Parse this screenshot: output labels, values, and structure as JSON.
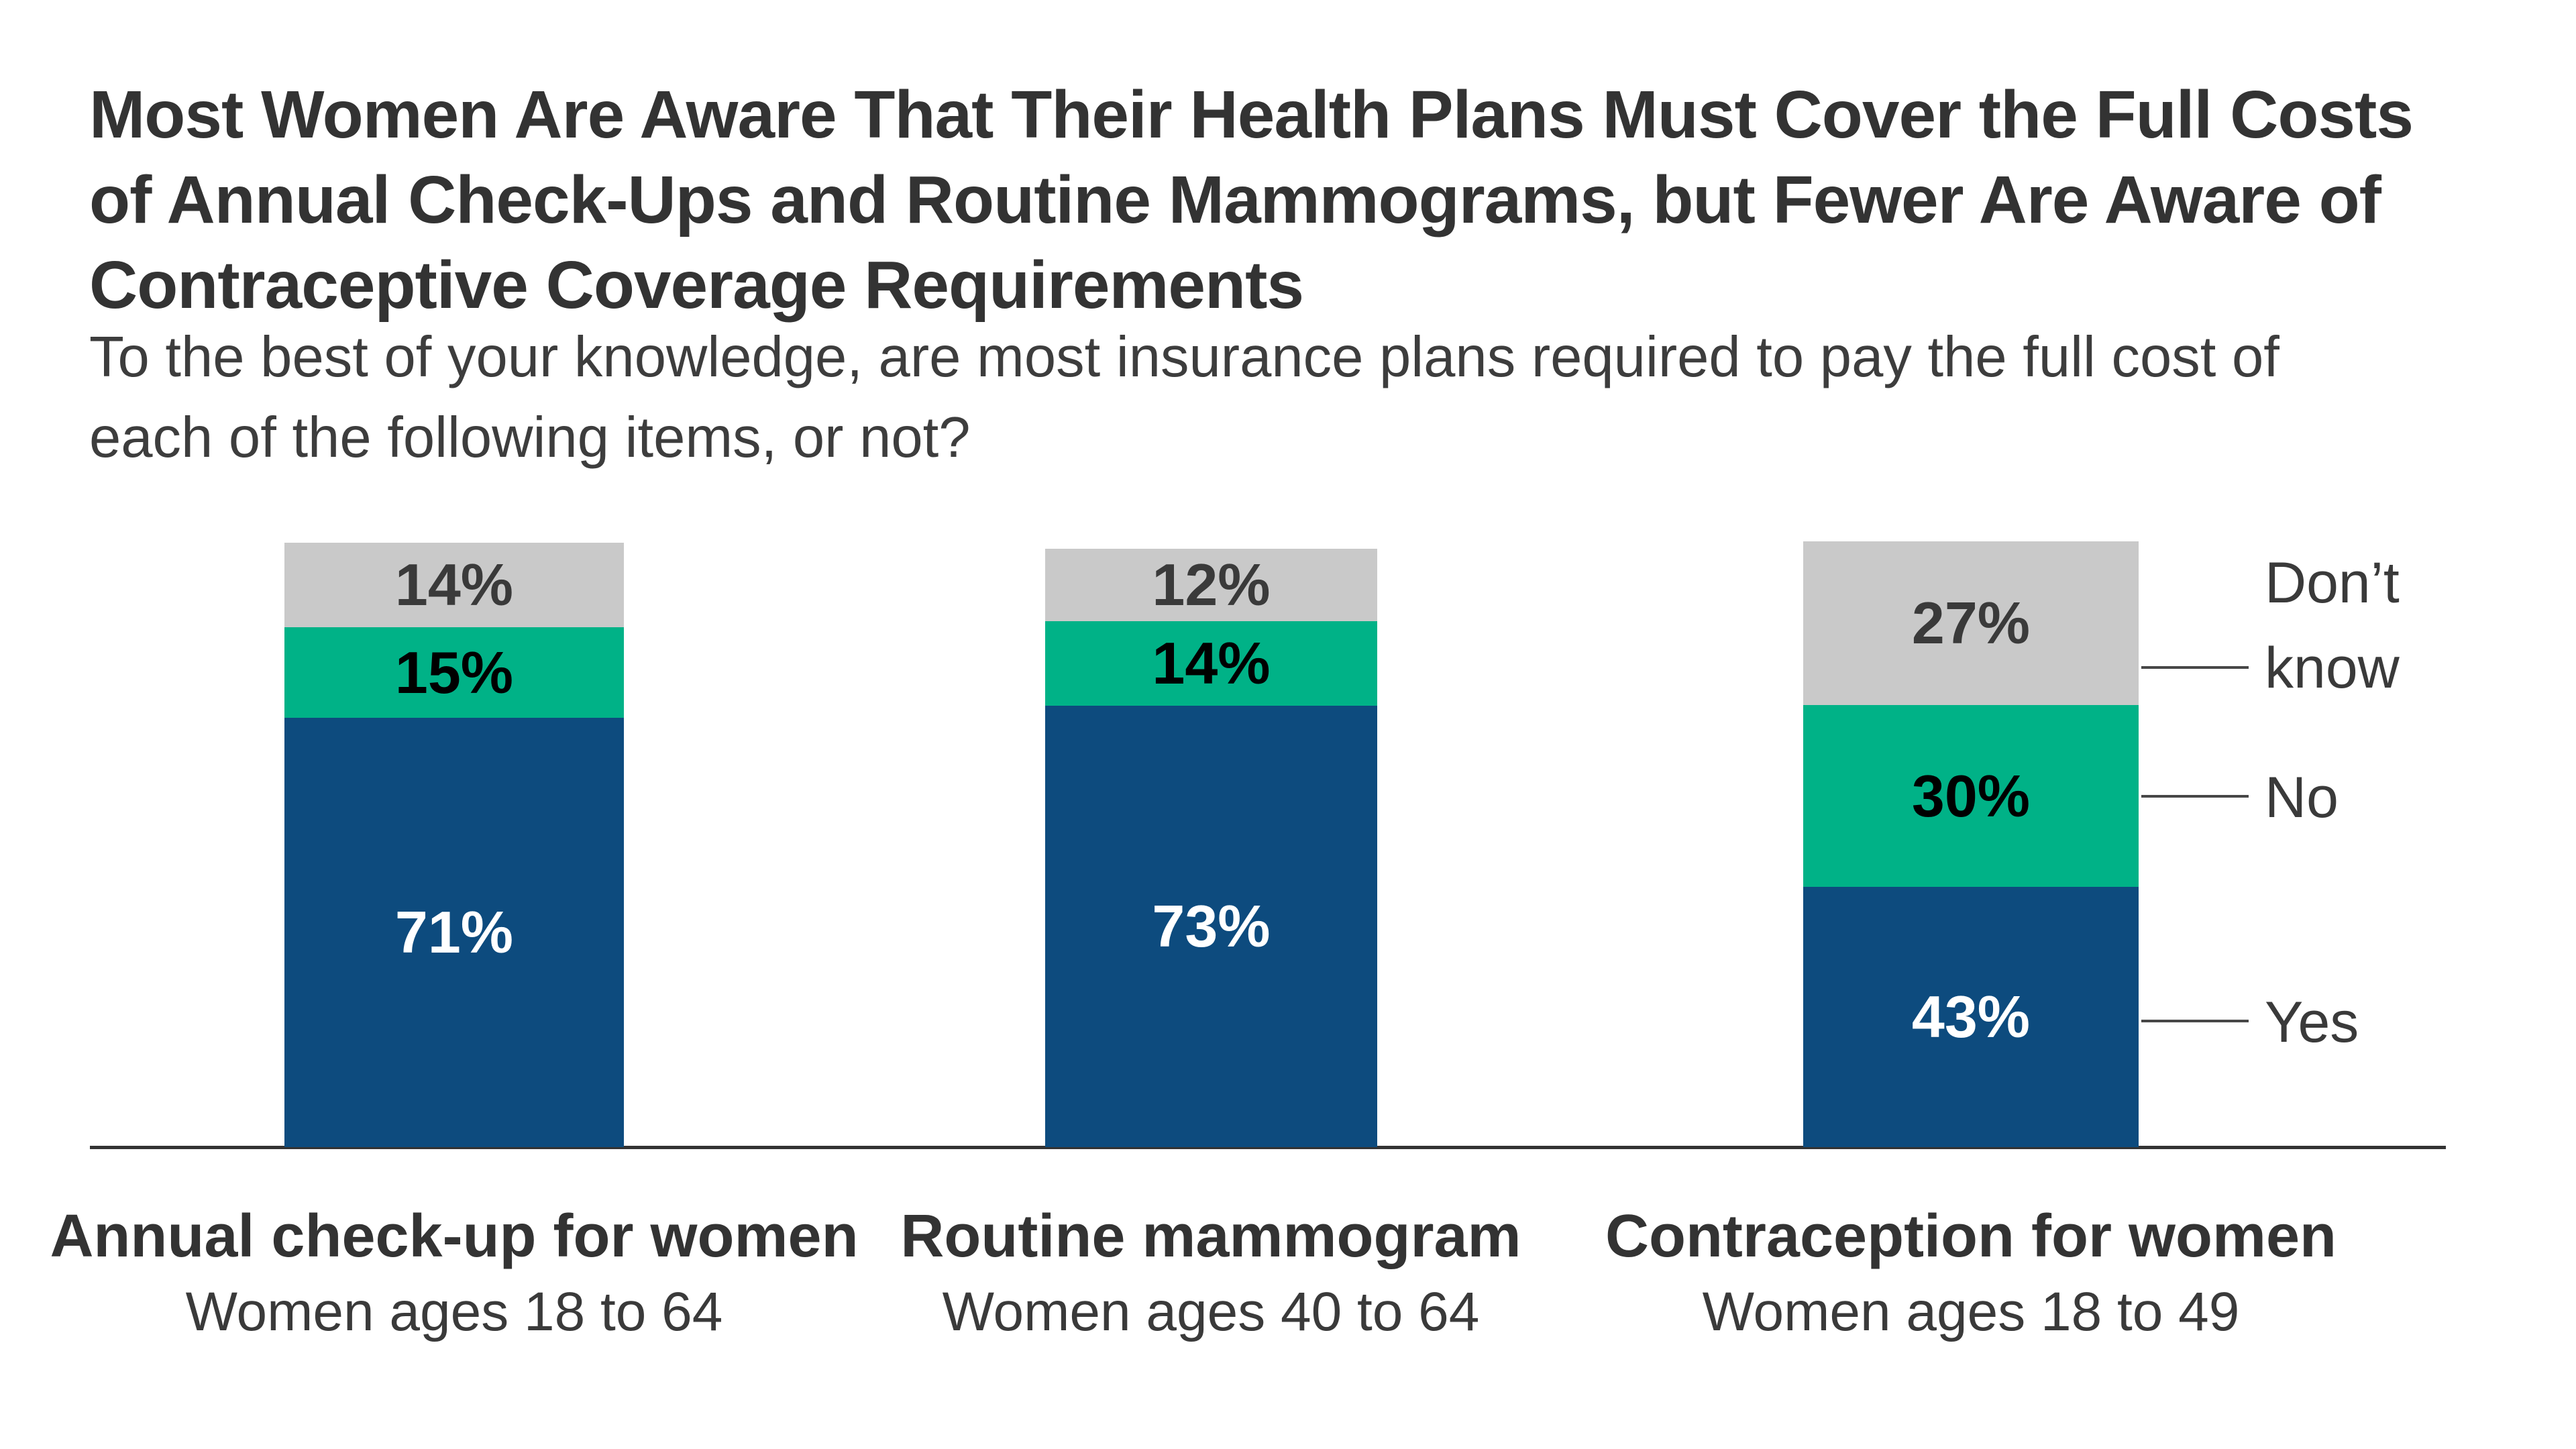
{
  "header": {
    "title_lines": [
      "Most Women Are Aware That Their Health Plans Must Cover the Full Costs",
      "of Annual Check-Ups and Routine Mammograms, but Fewer Are Aware of",
      "Contraceptive Coverage Requirements"
    ],
    "subtitle_lines": [
      "To the best of your knowledge, are most insurance plans required to pay the full cost of",
      "each of the following items, or not?"
    ]
  },
  "chart_data": {
    "type": "bar",
    "stacked": true,
    "orientation": "vertical",
    "value_suffix": "%",
    "legend_position": "right",
    "baseline_axis": true,
    "categories": [
      {
        "label": "Annual check-up for women",
        "sublabel": "Women ages 18 to 64"
      },
      {
        "label": "Routine mammogram",
        "sublabel": "Women ages 40 to 64"
      },
      {
        "label": "Contraception for women",
        "sublabel": "Women ages 18 to 49"
      }
    ],
    "series": [
      {
        "name": "Yes",
        "color": "#0D4B7E",
        "label_color": "#FFFFFF",
        "values": [
          71,
          73,
          43
        ]
      },
      {
        "name": "No",
        "color": "#00B287",
        "label_color": "#000000",
        "values": [
          15,
          14,
          30
        ]
      },
      {
        "name": "Don’t know",
        "color": "#C9C9C9",
        "label_color": "#3A3A3A",
        "values": [
          14,
          12,
          27
        ]
      }
    ]
  },
  "legend": {
    "items": [
      "Don’t know",
      "No",
      "Yes"
    ]
  },
  "colors": {
    "yes": "#0D4B7E",
    "no": "#00B287",
    "dont_know": "#C9C9C9",
    "title_text": "#333333",
    "subtitle_text": "#3D3D3D",
    "axis": "#333333"
  }
}
